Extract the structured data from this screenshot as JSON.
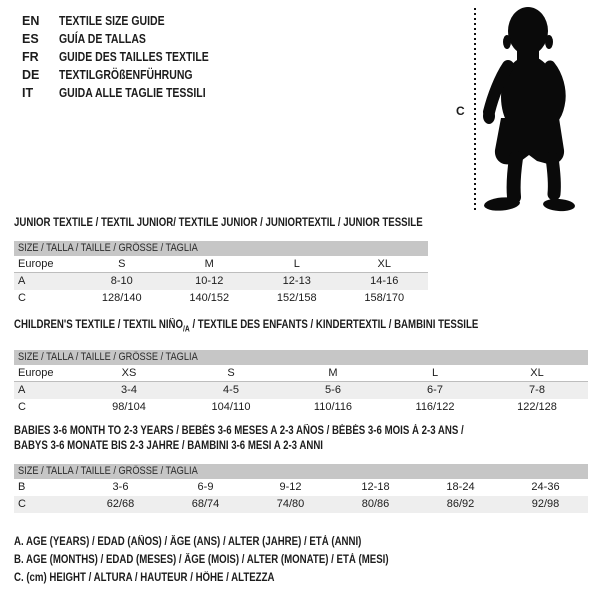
{
  "page": {
    "text_color": "#1c1c1c",
    "header_bar_color": "#c6c6c6",
    "alt_row_color": "#eeeeee",
    "silhouette_color": "#0a0a0a"
  },
  "languages": [
    {
      "code": "EN",
      "label": "TEXTILE SIZE GUIDE"
    },
    {
      "code": "ES",
      "label": "GUÍA DE TALLAS"
    },
    {
      "code": "FR",
      "label": "GUIDE DES TAILLES TEXTILE"
    },
    {
      "code": "DE",
      "label": "TEXTILGRÖßENFÜHRUNG"
    },
    {
      "code": "IT",
      "label": "GUIDA ALLE TAGLIE TESSILI"
    }
  ],
  "figure": {
    "icon": "baby-silhouette",
    "measure_label": "C"
  },
  "sections": [
    {
      "title_lines": [
        "JUNIOR TEXTILE / TEXTIL JUNIOR/ TEXTILE JUNIOR / JUNIORTEXTIL / JUNIOR TESSILE"
      ],
      "table_header": "SIZE / TALLA / TAILLE / GRÖSSE / TAGLIA",
      "rows": [
        {
          "label": "Europe",
          "values": [
            "S",
            "M",
            "L",
            "XL"
          ]
        },
        {
          "label": "A",
          "values": [
            "8-10",
            "10-12",
            "12-13",
            "14-16"
          ]
        },
        {
          "label": "C",
          "values": [
            "128/140",
            "140/152",
            "152/158",
            "158/170"
          ]
        }
      ]
    },
    {
      "title_rich": {
        "pre": "CHILDREN'S TEXTILE / TEXTIL NIÑO",
        "sub": "/A",
        "post": " / TEXTILE DES ENFANTS / KINDERTEXTIL / BAMBINI TESSILE"
      },
      "table_header": "SIZE / TALLA / TAILLE / GRÖSSE / TAGLIA",
      "rows": [
        {
          "label": "Europe",
          "values": [
            "XS",
            "S",
            "M",
            "L",
            "XL"
          ]
        },
        {
          "label": "A",
          "values": [
            "3-4",
            "4-5",
            "5-6",
            "6-7",
            "7-8"
          ]
        },
        {
          "label": "C",
          "values": [
            "98/104",
            "104/110",
            "110/116",
            "116/122",
            "122/128"
          ]
        }
      ]
    },
    {
      "title_lines": [
        "BABIES 3-6 MONTH TO 2-3 YEARS / BEBÉS 3-6 MESES A 2-3 AÑOS / BÉBÉS 3-6 MOIS À 2-3 ANS /",
        "BABYS 3-6 MONATE BIS 2-3 JAHRE / BAMBINI 3-6 MESI A 2-3 ANNI"
      ],
      "table_header": "SIZE / TALLA / TAILLE / GRÖSSE / TAGLIA",
      "rows": [
        {
          "label": "B",
          "values": [
            "3-6",
            "6-9",
            "9-12",
            "12-18",
            "18-24",
            "24-36"
          ]
        },
        {
          "label": "C",
          "values": [
            "62/68",
            "68/74",
            "74/80",
            "80/86",
            "86/92",
            "92/98"
          ]
        }
      ]
    }
  ],
  "footnotes": [
    "A. AGE (YEARS) / EDAD (AÑOS) / ÂGE (ANS) / ALTER (JAHRE) / ETÀ (ANNI)",
    "B. AGE (MONTHS) / EDAD (MESES) / ÂGE (MOIS) / ALTER (MONATE) / ETÀ (MESI)",
    "C. (cm) HEIGHT / ALTURA / HAUTEUR / HÖHE / ALTEZZA"
  ]
}
